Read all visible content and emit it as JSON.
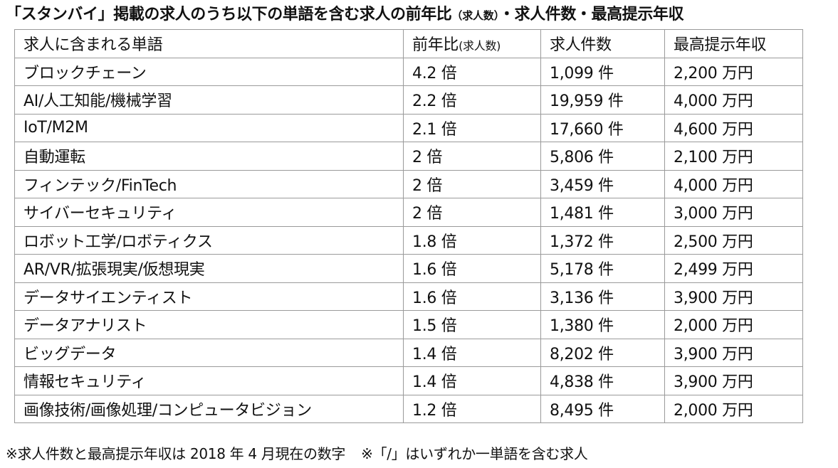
{
  "title": {
    "main": "「スタンバイ」掲載の求人のうち以下の単語を含む求人の前年比",
    "paren": "（求人数）",
    "rest": "・求人件数・最高提示年収"
  },
  "table": {
    "headers": {
      "word": "求人に含まれる単語",
      "ratio": "前年比",
      "ratio_note": "(求人数)",
      "count": "求人件数",
      "salary": "最高提示年収"
    },
    "rows": [
      {
        "word": "ブロックチェーン",
        "ratio": "4.2 倍",
        "count": "1,099 件",
        "salary": "2,200 万円"
      },
      {
        "word": "AI/人工知能/機械学習",
        "ratio": "2.2 倍",
        "count": "19,959 件",
        "salary": "4,000 万円"
      },
      {
        "word": "IoT/M2M",
        "ratio": "2.1 倍",
        "count": "17,660 件",
        "salary": "4,600 万円"
      },
      {
        "word": "自動運転",
        "ratio": "2 倍",
        "count": "5,806 件",
        "salary": "2,100 万円"
      },
      {
        "word": "フィンテック/FinTech",
        "ratio": "2 倍",
        "count": "3,459 件",
        "salary": "4,000 万円"
      },
      {
        "word": "サイバーセキュリティ",
        "ratio": "2 倍",
        "count": "1,481 件",
        "salary": "3,000 万円"
      },
      {
        "word": "ロボット工学/ロボティクス",
        "ratio": "1.8 倍",
        "count": "1,372 件",
        "salary": "2,500 万円"
      },
      {
        "word": "AR/VR/拡張現実/仮想現実",
        "ratio": "1.6 倍",
        "count": "5,178 件",
        "salary": "2,499 万円"
      },
      {
        "word": "データサイエンティスト",
        "ratio": "1.6 倍",
        "count": "3,136 件",
        "salary": "3,900 万円"
      },
      {
        "word": "データアナリスト",
        "ratio": "1.5 倍",
        "count": "1,380 件",
        "salary": "2,000 万円"
      },
      {
        "word": "ビッグデータ",
        "ratio": "1.4 倍",
        "count": "8,202 件",
        "salary": "3,900 万円"
      },
      {
        "word": "情報セキュリティ",
        "ratio": "1.4 倍",
        "count": "4,838 件",
        "salary": "3,900 万円"
      },
      {
        "word": "画像技術/画像処理/コンピュータビジョン",
        "ratio": "1.2 倍",
        "count": "8,495 件",
        "salary": "2,000 万円"
      }
    ]
  },
  "footnote": {
    "note1": "※求人件数と最高提示年収は 2018 年 4 月現在の数字",
    "note2": "※「/」はいずれか一単語を含む求人"
  }
}
